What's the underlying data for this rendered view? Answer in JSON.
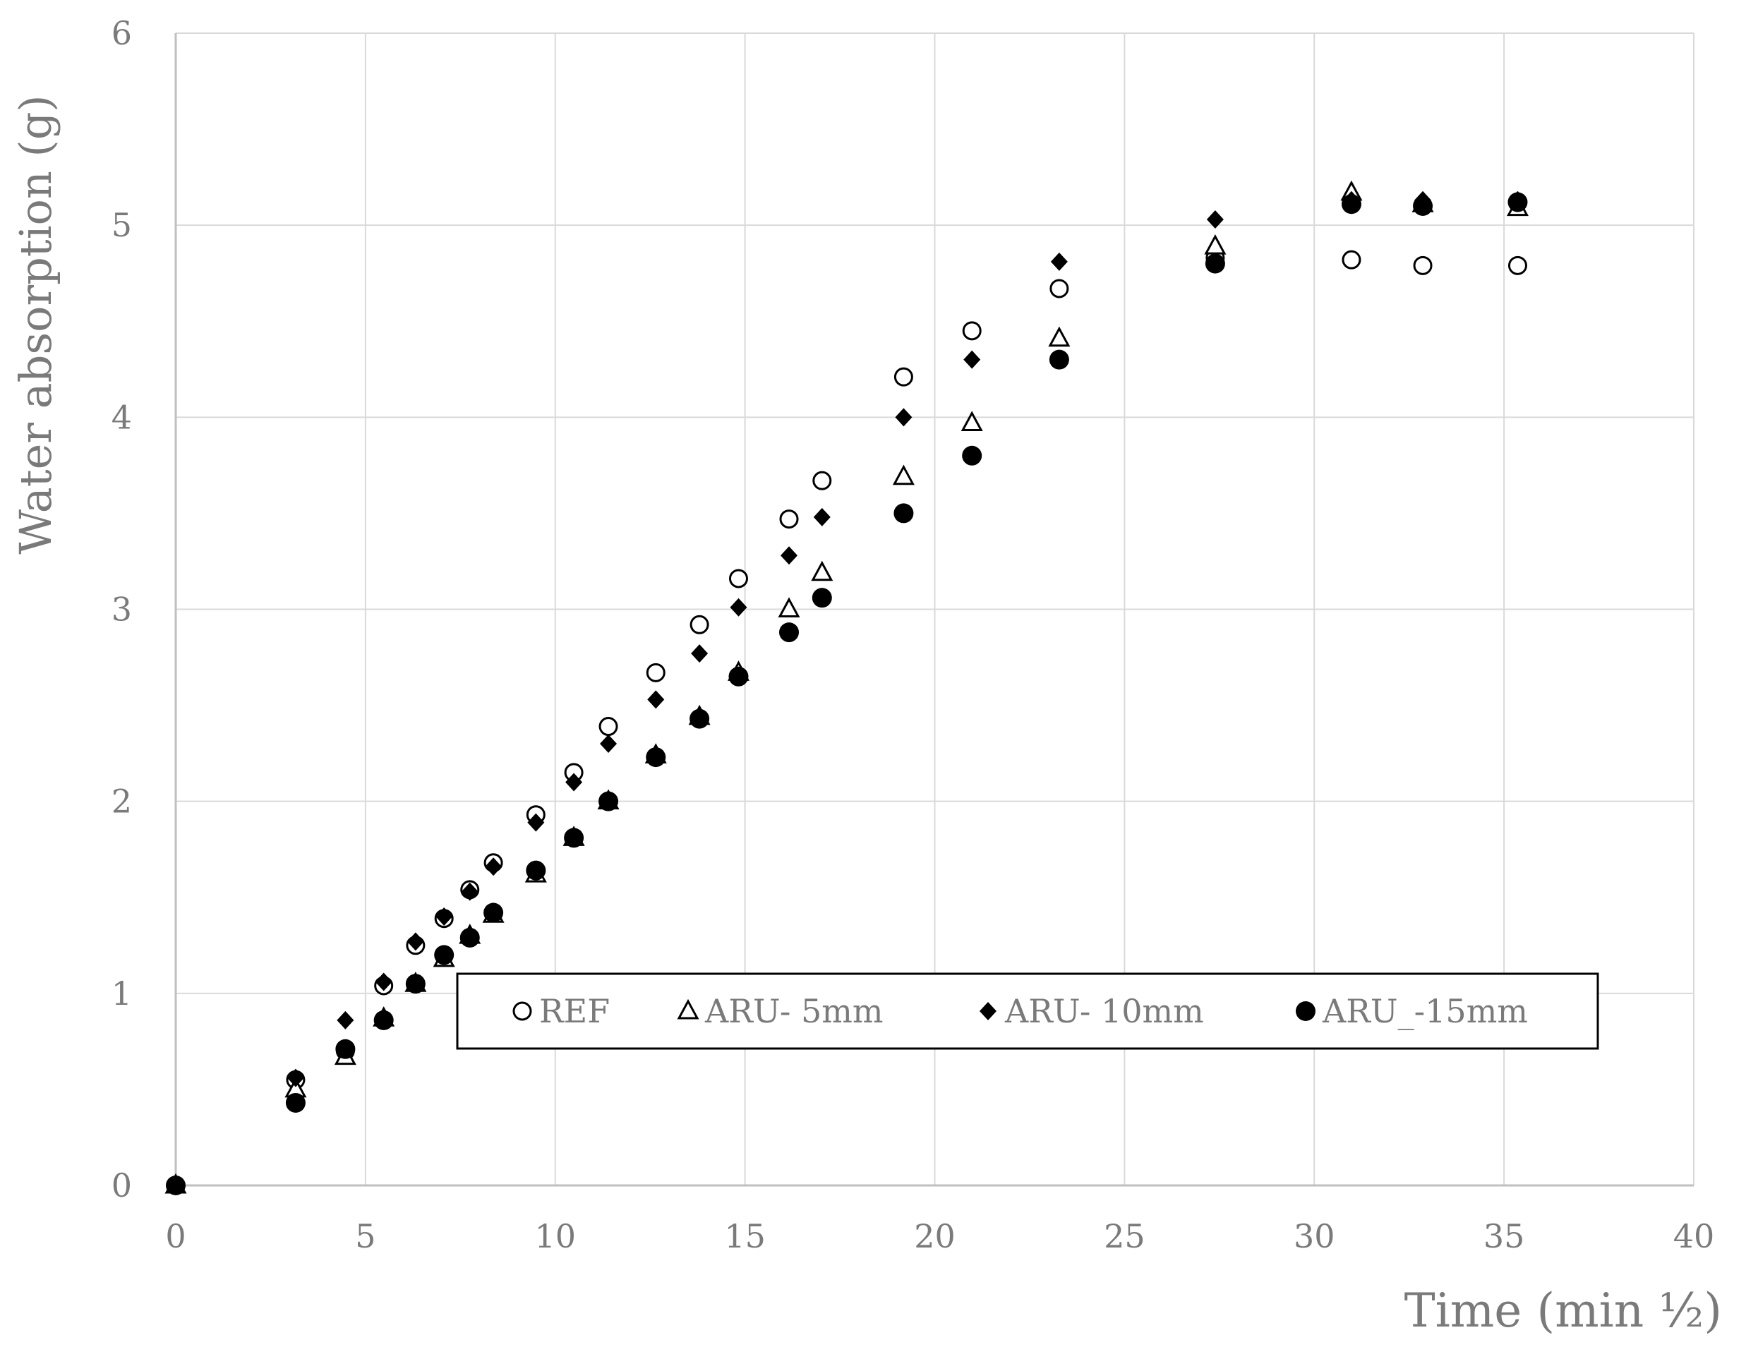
{
  "chart_data": {
    "type": "scatter",
    "xlabel": "Time (min ½)",
    "ylabel": "Water absorption (g)",
    "xlim": [
      0,
      40
    ],
    "ylim": [
      0,
      6
    ],
    "x_ticks": [
      "0",
      "5",
      "10",
      "15",
      "20",
      "25",
      "30",
      "35",
      "40"
    ],
    "y_ticks": [
      "0",
      "1",
      "2",
      "3",
      "4",
      "5",
      "6"
    ],
    "grid": true,
    "legend_position": "inside-lower-right",
    "series": [
      {
        "name": "REF",
        "marker": "circle-open",
        "x": [
          0,
          3.16,
          4.47,
          5.48,
          6.32,
          7.07,
          7.75,
          8.37,
          9.49,
          10.49,
          11.4,
          12.65,
          13.8,
          14.83,
          16.16,
          17.03,
          19.18,
          20.98,
          23.28,
          27.39,
          30.98,
          32.86,
          35.36
        ],
        "y": [
          0,
          0.55,
          0.7,
          1.04,
          1.25,
          1.39,
          1.54,
          1.68,
          1.93,
          2.15,
          2.39,
          2.67,
          2.92,
          3.16,
          3.47,
          3.67,
          4.21,
          4.45,
          4.67,
          4.83,
          4.82,
          4.79,
          4.79
        ]
      },
      {
        "name": "ARU- 5mm",
        "marker": "triangle-open",
        "x": [
          0,
          3.16,
          4.47,
          5.48,
          6.32,
          7.07,
          7.75,
          8.37,
          9.49,
          10.49,
          11.4,
          12.65,
          13.8,
          14.83,
          16.16,
          17.03,
          19.18,
          20.98,
          23.28,
          27.39,
          30.98,
          32.86,
          35.36
        ],
        "y": [
          0,
          0.5,
          0.67,
          0.87,
          1.05,
          1.18,
          1.3,
          1.41,
          1.62,
          1.81,
          2.0,
          2.24,
          2.44,
          2.67,
          3.0,
          3.19,
          3.69,
          3.97,
          4.41,
          4.89,
          5.17,
          5.11,
          5.09
        ]
      },
      {
        "name": "ARU- 10mm",
        "marker": "diamond-filled",
        "x": [
          0,
          3.16,
          4.47,
          5.48,
          6.32,
          7.07,
          7.75,
          8.37,
          9.49,
          10.49,
          11.4,
          12.65,
          13.8,
          14.83,
          16.16,
          17.03,
          19.18,
          20.98,
          23.28,
          27.39,
          30.98,
          32.86,
          35.36
        ],
        "y": [
          0,
          0.56,
          0.86,
          1.06,
          1.27,
          1.4,
          1.53,
          1.66,
          1.89,
          2.1,
          2.3,
          2.53,
          2.77,
          3.01,
          3.28,
          3.48,
          4.0,
          4.3,
          4.81,
          5.03,
          5.13,
          5.13,
          5.13
        ]
      },
      {
        "name": "ARU_-15mm",
        "marker": "circle-filled",
        "x": [
          0,
          3.16,
          4.47,
          5.48,
          6.32,
          7.07,
          7.75,
          8.37,
          9.49,
          10.49,
          11.4,
          12.65,
          13.8,
          14.83,
          16.16,
          17.03,
          19.18,
          20.98,
          23.28,
          27.39,
          30.98,
          32.86,
          35.36
        ],
        "y": [
          0,
          0.43,
          0.71,
          0.86,
          1.05,
          1.2,
          1.29,
          1.42,
          1.64,
          1.81,
          2.0,
          2.23,
          2.43,
          2.65,
          2.88,
          3.06,
          3.5,
          3.8,
          4.3,
          4.8,
          5.11,
          5.1,
          5.12
        ]
      }
    ]
  }
}
